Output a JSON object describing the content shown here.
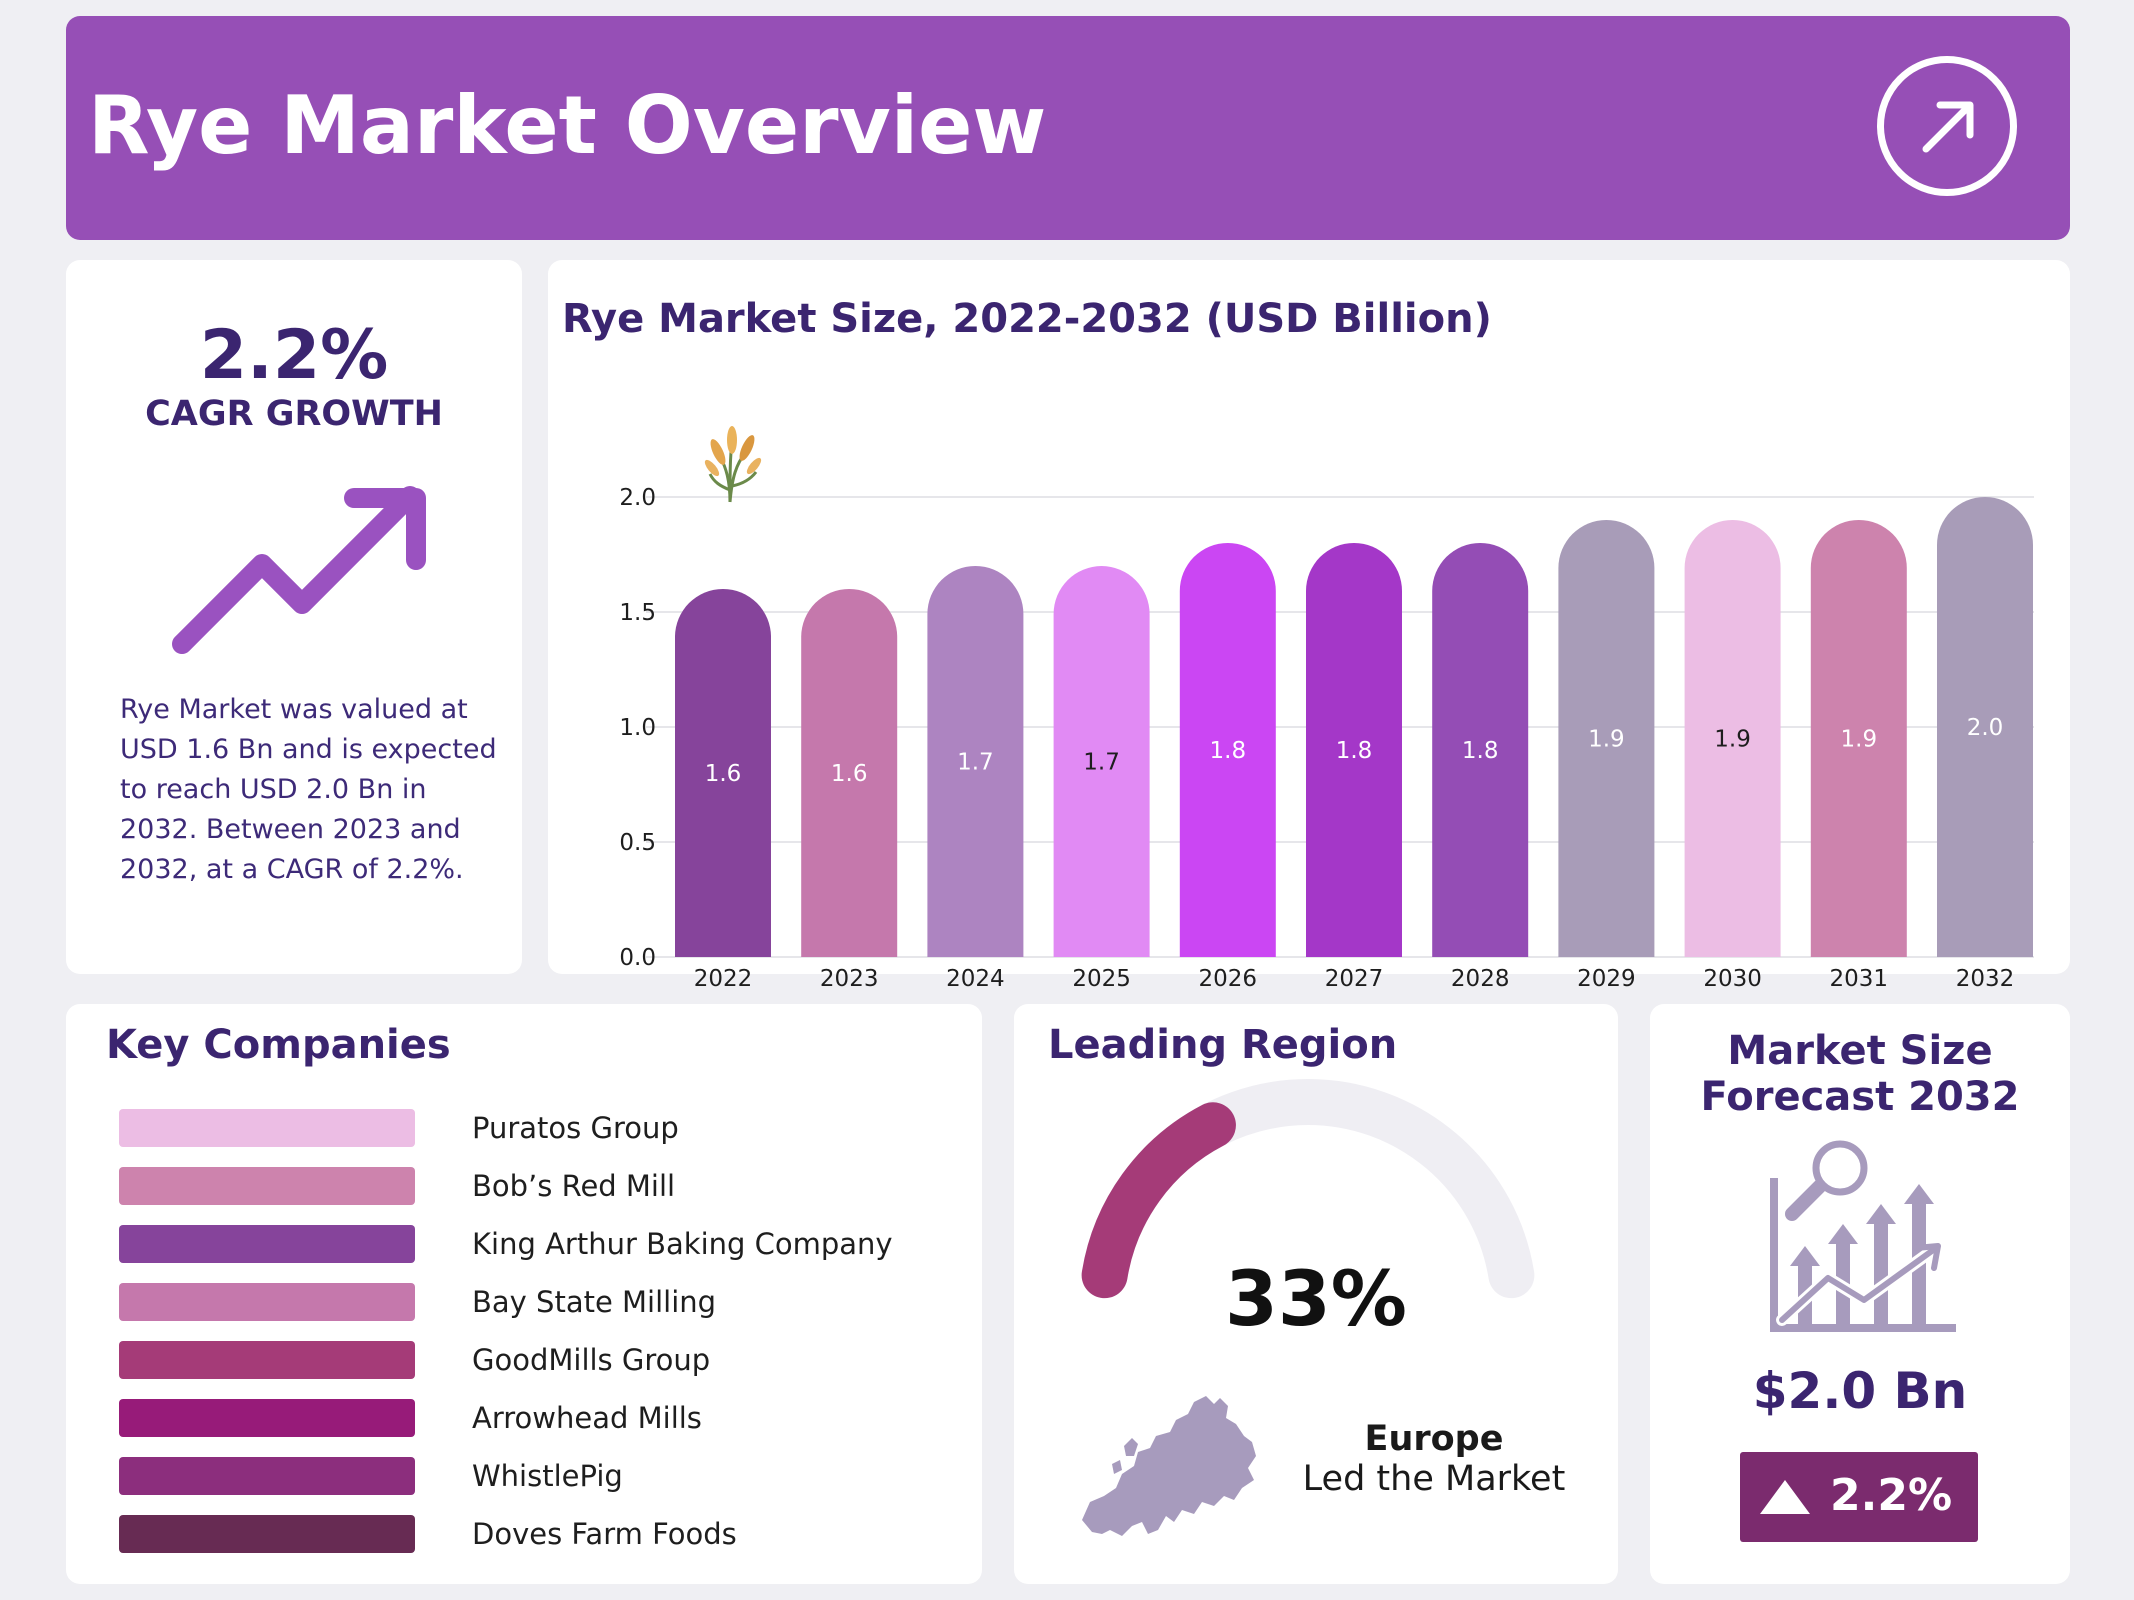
{
  "header": {
    "title": "Rye Market Overview",
    "action_icon": "arrow-up-right-icon"
  },
  "cagr": {
    "value": "2.2%",
    "label": "CAGR GROWTH",
    "icon": "trend-up-icon",
    "description": "Rye Market was valued at USD 1.6 Bn and is expected to reach USD 2.0 Bn in 2032. Between 2023 and 2032, at a CAGR of 2.2%."
  },
  "chart_data": {
    "type": "bar",
    "title": "Rye Market Size, 2022-2032 (USD Billion)",
    "xlabel": "",
    "ylabel": "",
    "categories": [
      "2022",
      "2023",
      "2024",
      "2025",
      "2026",
      "2027",
      "2028",
      "2029",
      "2030",
      "2031",
      "2032"
    ],
    "values": [
      1.6,
      1.6,
      1.7,
      1.7,
      1.8,
      1.8,
      1.8,
      1.9,
      1.9,
      1.9,
      2.0
    ],
    "data_labels": [
      "1.6",
      "1.6",
      "1.7",
      "1.7",
      "1.8",
      "1.8",
      "1.8",
      "1.9",
      "1.9",
      "1.9",
      "2.0"
    ],
    "yticks": [
      "0.0",
      "0.5",
      "1.0",
      "1.5",
      "2.0"
    ],
    "ylim": [
      0,
      2.0
    ],
    "grid": true,
    "legend": "none",
    "bar_colors": [
      "#86449b",
      "#c578ac",
      "#ad84c1",
      "#e18af4",
      "#cb46f3",
      "#a437c8",
      "#944db5",
      "#a89cb8",
      "#ecbde4",
      "#cd83ad",
      "#a89cb8"
    ],
    "label_colors": [
      "#ffffff",
      "#ffffff",
      "#ffffff",
      "#1e1e1e",
      "#ffffff",
      "#ffffff",
      "#ffffff",
      "#ffffff",
      "#1e1e1e",
      "#ffffff",
      "#ffffff"
    ],
    "decoration": "wheat-icon"
  },
  "companies": {
    "title": "Key Companies",
    "items": [
      {
        "name": "Puratos Group",
        "color": "#ecbde4"
      },
      {
        "name": "Bob’s Red Mill",
        "color": "#cd83ad"
      },
      {
        "name": "King Arthur Baking Company",
        "color": "#86449b"
      },
      {
        "name": "Bay State Milling",
        "color": "#c578ac"
      },
      {
        "name": "GoodMills Group",
        "color": "#a53b78"
      },
      {
        "name": "Arrowhead Mills",
        "color": "#971b79"
      },
      {
        "name": "WhistlePig",
        "color": "#8c2e7d"
      },
      {
        "name": "Doves Farm Foods",
        "color": "#672b53"
      }
    ]
  },
  "region": {
    "title": "Leading Region",
    "share_value": "33%",
    "share_fraction": 0.33,
    "gauge_color": "#a53b78",
    "gauge_track_color": "#efeef3",
    "name": "Europe",
    "subtitle": "Led the Market",
    "map_icon": "europe-map-icon"
  },
  "forecast": {
    "title_line1": "Market Size",
    "title_line2": "Forecast 2032",
    "icon": "growth-analysis-icon",
    "value": "$2.0 Bn",
    "growth": "2.2%",
    "growth_icon": "triangle-up-icon"
  }
}
